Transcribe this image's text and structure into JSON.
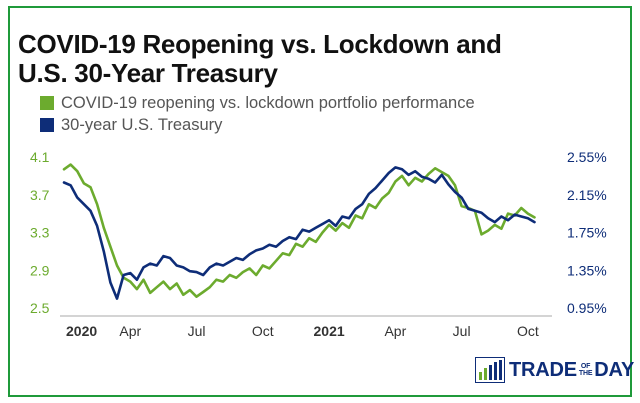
{
  "title_line1": "COVID-19 Reopening vs. Lockdown and",
  "title_line2": "U.S. 30-Year Treasury",
  "colors": {
    "green": "#6cab2e",
    "blue": "#0e2d78",
    "border": "#1f9a3a",
    "axis": "#aaaaaa"
  },
  "logo": {
    "word1": "TRADE",
    "small1": "OF",
    "small2": "THE",
    "word2": "DAY",
    "icon": "bar-chart-icon"
  },
  "chart_data": {
    "type": "line",
    "title": "COVID-19 Reopening vs. Lockdown and U.S. 30-Year Treasury",
    "x_ticks": [
      {
        "label": "2020",
        "x": 0,
        "bold": true
      },
      {
        "label": "Apr",
        "x": 3,
        "bold": false
      },
      {
        "label": "Jul",
        "x": 6,
        "bold": false
      },
      {
        "label": "Oct",
        "x": 9,
        "bold": false
      },
      {
        "label": "2021",
        "x": 12,
        "bold": true
      },
      {
        "label": "Apr",
        "x": 15,
        "bold": false
      },
      {
        "label": "Jul",
        "x": 18,
        "bold": false
      },
      {
        "label": "Oct",
        "x": 21,
        "bold": false
      }
    ],
    "xlim": [
      0,
      22
    ],
    "left_axis": {
      "ylim": [
        2.5,
        4.1
      ],
      "ticks": [
        "4.1",
        "3.7",
        "3.3",
        "2.9",
        "2.5"
      ],
      "tick_values": [
        4.1,
        3.7,
        3.3,
        2.9,
        2.5
      ]
    },
    "right_axis": {
      "ylim": [
        0.95,
        2.55
      ],
      "ticks": [
        "2.55%",
        "2.15%",
        "1.75%",
        "1.35%",
        "0.95%"
      ],
      "tick_values": [
        2.55,
        2.15,
        1.75,
        1.35,
        0.95
      ]
    },
    "series": [
      {
        "name": "COVID-19 reopening vs. lockdown portfolio performance",
        "axis": "left",
        "x": [
          0.0,
          0.3,
          0.6,
          0.9,
          1.2,
          1.5,
          1.8,
          2.1,
          2.4,
          2.7,
          3.0,
          3.3,
          3.6,
          3.9,
          4.2,
          4.5,
          4.8,
          5.1,
          5.4,
          5.7,
          6.0,
          6.3,
          6.6,
          6.9,
          7.2,
          7.5,
          7.8,
          8.1,
          8.4,
          8.7,
          9.0,
          9.3,
          9.6,
          9.9,
          10.2,
          10.5,
          10.8,
          11.1,
          11.4,
          11.7,
          12.0,
          12.3,
          12.6,
          12.9,
          13.2,
          13.5,
          13.8,
          14.1,
          14.4,
          14.7,
          15.0,
          15.3,
          15.6,
          15.9,
          16.2,
          16.5,
          16.8,
          17.1,
          17.4,
          17.7,
          18.0,
          18.3,
          18.6,
          18.9,
          19.2,
          19.5,
          19.8,
          20.1,
          20.4,
          20.7,
          21.0,
          21.3
        ],
        "values": [
          3.97,
          4.02,
          3.95,
          3.82,
          3.78,
          3.6,
          3.35,
          3.15,
          2.95,
          2.82,
          2.78,
          2.7,
          2.8,
          2.66,
          2.72,
          2.78,
          2.7,
          2.76,
          2.64,
          2.69,
          2.62,
          2.67,
          2.72,
          2.8,
          2.78,
          2.85,
          2.82,
          2.88,
          2.92,
          2.85,
          2.95,
          2.92,
          3.0,
          3.08,
          3.06,
          3.18,
          3.15,
          3.24,
          3.2,
          3.3,
          3.38,
          3.32,
          3.4,
          3.35,
          3.48,
          3.45,
          3.6,
          3.56,
          3.66,
          3.72,
          3.84,
          3.9,
          3.8,
          3.88,
          3.84,
          3.92,
          3.98,
          3.94,
          3.9,
          3.8,
          3.58,
          3.56,
          3.53,
          3.28,
          3.32,
          3.38,
          3.34,
          3.5,
          3.48,
          3.56,
          3.5,
          3.46
        ],
        "color": "#6cab2e"
      },
      {
        "name": "30-year U.S. Treasury",
        "axis": "right",
        "x": [
          0.0,
          0.3,
          0.6,
          0.9,
          1.2,
          1.5,
          1.8,
          2.1,
          2.4,
          2.7,
          3.0,
          3.3,
          3.6,
          3.9,
          4.2,
          4.5,
          4.8,
          5.1,
          5.4,
          5.7,
          6.0,
          6.3,
          6.6,
          6.9,
          7.2,
          7.5,
          7.8,
          8.1,
          8.4,
          8.7,
          9.0,
          9.3,
          9.6,
          9.9,
          10.2,
          10.5,
          10.8,
          11.1,
          11.4,
          11.7,
          12.0,
          12.3,
          12.6,
          12.9,
          13.2,
          13.5,
          13.8,
          14.1,
          14.4,
          14.7,
          15.0,
          15.3,
          15.6,
          15.9,
          16.2,
          16.5,
          16.8,
          17.1,
          17.4,
          17.7,
          18.0,
          18.3,
          18.6,
          18.9,
          19.2,
          19.5,
          19.8,
          20.1,
          20.4,
          20.7,
          21.0,
          21.3
        ],
        "values": [
          2.28,
          2.25,
          2.12,
          2.05,
          1.98,
          1.82,
          1.55,
          1.22,
          1.05,
          1.3,
          1.32,
          1.25,
          1.38,
          1.42,
          1.4,
          1.5,
          1.48,
          1.4,
          1.38,
          1.34,
          1.33,
          1.3,
          1.38,
          1.42,
          1.4,
          1.44,
          1.48,
          1.46,
          1.52,
          1.56,
          1.58,
          1.62,
          1.6,
          1.66,
          1.7,
          1.68,
          1.78,
          1.76,
          1.8,
          1.84,
          1.88,
          1.82,
          1.92,
          1.9,
          2.0,
          2.05,
          2.16,
          2.22,
          2.3,
          2.38,
          2.44,
          2.42,
          2.36,
          2.4,
          2.34,
          2.32,
          2.28,
          2.36,
          2.26,
          2.18,
          2.12,
          2.0,
          1.98,
          1.96,
          1.9,
          1.86,
          1.92,
          1.88,
          1.94,
          1.92,
          1.9,
          1.86
        ],
        "color": "#0e2d78"
      }
    ]
  }
}
